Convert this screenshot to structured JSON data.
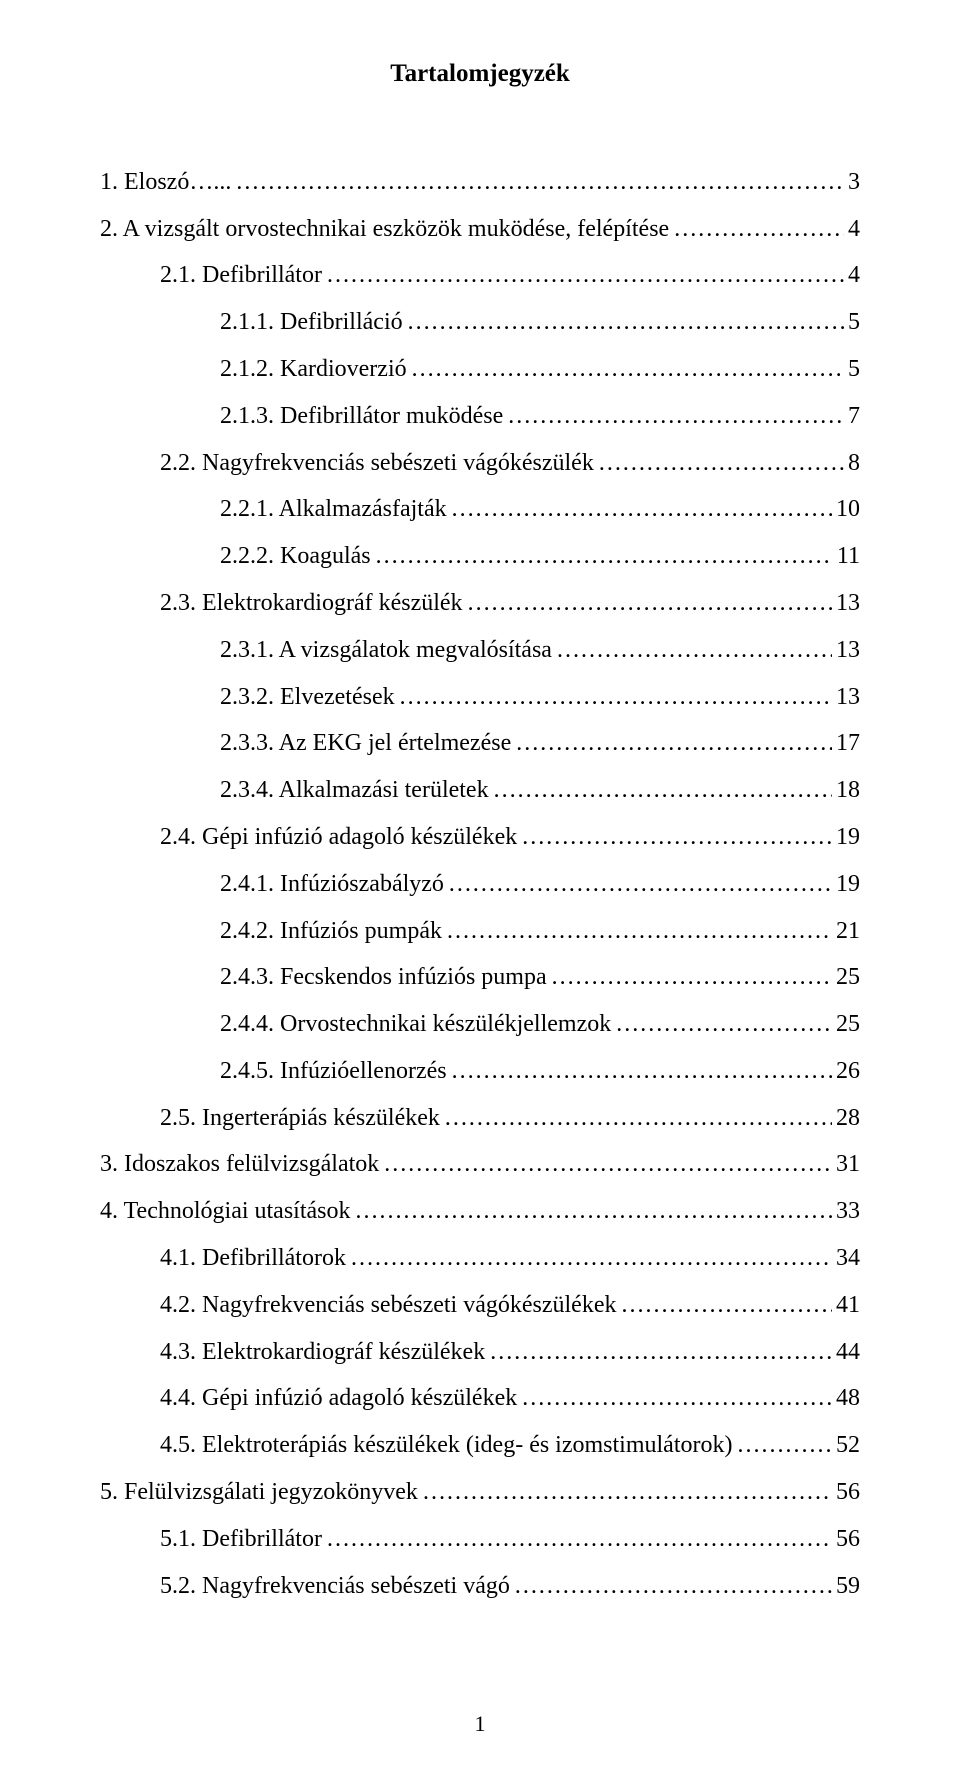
{
  "title": "Tartalomjegyzék",
  "page_number": "1",
  "colors": {
    "background": "#ffffff",
    "text": "#000000"
  },
  "typography": {
    "family": "Times New Roman",
    "body_size_pt": 12,
    "title_size_pt": 12,
    "title_weight": "bold"
  },
  "toc": [
    {
      "level": 0,
      "label": "1. Eloszó…...",
      "page": "3"
    },
    {
      "level": 0,
      "label": "2. A vizsgált orvostechnikai eszközök muködése, felépítése",
      "page": "4"
    },
    {
      "level": 1,
      "label": "2.1. Defibrillátor",
      "page": "4"
    },
    {
      "level": 2,
      "label": "2.1.1. Defibrilláció",
      "page": "5"
    },
    {
      "level": 2,
      "label": "2.1.2. Kardioverzió",
      "page": "5"
    },
    {
      "level": 2,
      "label": "2.1.3. Defibrillátor muködése",
      "page": "7"
    },
    {
      "level": 1,
      "label": "2.2. Nagyfrekvenciás sebészeti vágókészülék",
      "page": "8"
    },
    {
      "level": 2,
      "label": "2.2.1. Alkalmazásfajták",
      "page": "10"
    },
    {
      "level": 2,
      "label": "2.2.2. Koagulás",
      "page": "11"
    },
    {
      "level": 1,
      "label": "2.3. Elektrokardiográf készülék",
      "page": "13"
    },
    {
      "level": 2,
      "label": "2.3.1. A vizsgálatok megvalósítása",
      "page": "13"
    },
    {
      "level": 2,
      "label": "2.3.2. Elvezetések",
      "page": "13"
    },
    {
      "level": 2,
      "label": "2.3.3. Az EKG jel értelmezése",
      "page": "17"
    },
    {
      "level": 2,
      "label": "2.3.4. Alkalmazási területek",
      "page": "18"
    },
    {
      "level": 1,
      "label": "2.4. Gépi infúzió adagoló készülékek",
      "page": "19"
    },
    {
      "level": 2,
      "label": "2.4.1. Infúziószabályzó",
      "page": "19"
    },
    {
      "level": 2,
      "label": "2.4.2. Infúziós pumpák",
      "page": "21"
    },
    {
      "level": 2,
      "label": "2.4.3. Fecskendos infúziós pumpa",
      "page": "25"
    },
    {
      "level": 2,
      "label": "2.4.4. Orvostechnikai készülékjellemzok",
      "page": "25"
    },
    {
      "level": 2,
      "label": "2.4.5. Infúzióellenorzés",
      "page": "26"
    },
    {
      "level": 1,
      "label": "2.5. Ingerterápiás készülékek",
      "page": "28"
    },
    {
      "level": 0,
      "label": "3. Idoszakos felülvizsgálatok",
      "page": "31"
    },
    {
      "level": 0,
      "label": "4. Technológiai utasítások",
      "page": "33"
    },
    {
      "level": 1,
      "label": "4.1. Defibrillátorok",
      "page": "34"
    },
    {
      "level": 1,
      "label": "4.2. Nagyfrekvenciás sebészeti vágókészülékek",
      "page": "41"
    },
    {
      "level": 1,
      "label": "4.3. Elektrokardiográf készülékek",
      "page": "44"
    },
    {
      "level": 1,
      "label": "4.4. Gépi infúzió adagoló készülékek",
      "page": "48"
    },
    {
      "level": 1,
      "label": "4.5. Elektroterápiás készülékek (ideg- és izomstimulátorok)",
      "page": "52"
    },
    {
      "level": 0,
      "label": "5. Felülvizsgálati jegyzokönyvek",
      "page": "56"
    },
    {
      "level": 1,
      "label": "5.1. Defibrillátor",
      "page": "56"
    },
    {
      "level": 1,
      "label": "5.2. Nagyfrekvenciás sebészeti vágó",
      "page": "59"
    }
  ]
}
